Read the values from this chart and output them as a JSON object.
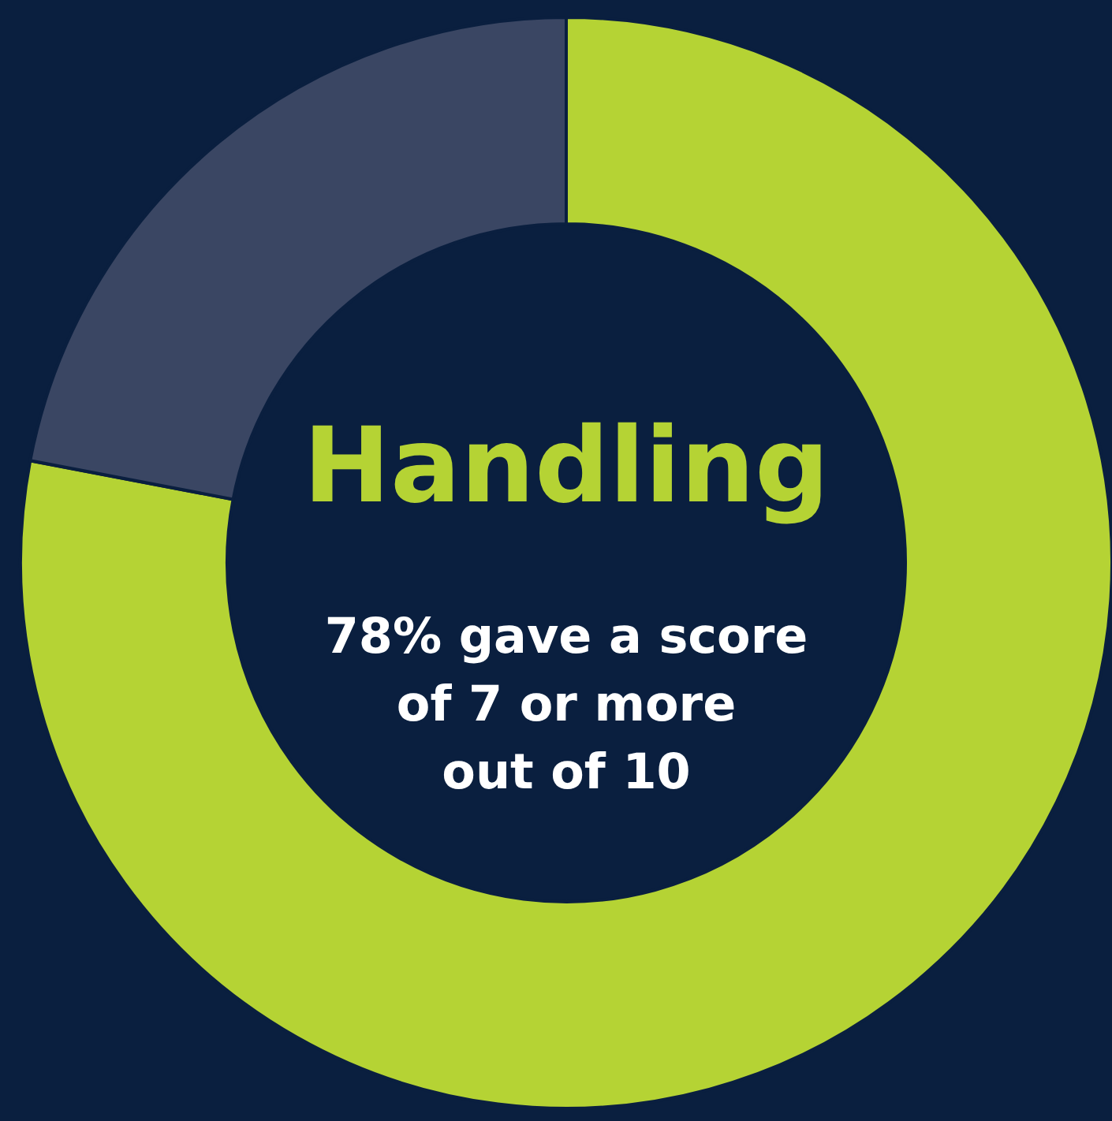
{
  "chart_data": {
    "type": "donut",
    "title": "Handling",
    "annotations": [
      "78% gave a score",
      "of 7 or more",
      "out of 10"
    ],
    "categories": [
      null,
      null
    ],
    "values": [
      78,
      22
    ],
    "colors": [
      "#b5d334",
      "#3a4663"
    ]
  }
}
